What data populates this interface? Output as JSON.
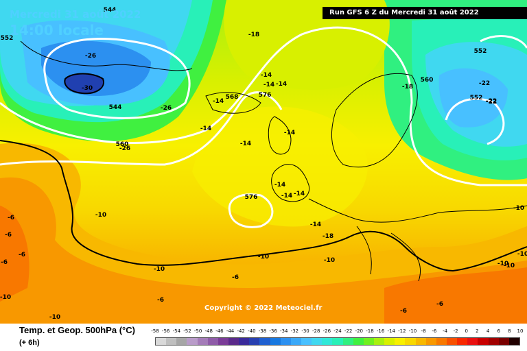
{
  "header": {
    "date": "Mercredi 31 août 2022",
    "time": "14:00 locale",
    "run": "Run GFS 6 Z du Mercredi 31 août 2022"
  },
  "copyright": "Copyright © 2022 Meteociel.fr",
  "legend": {
    "title": "Temp. et Geop. 500hPa (°C)",
    "subtitle": "(+ 6h)",
    "ticks": [
      "-58",
      "-56",
      "-54",
      "-52",
      "-50",
      "-48",
      "-46",
      "-44",
      "-42",
      "-40",
      "-38",
      "-36",
      "-34",
      "-32",
      "-30",
      "-28",
      "-26",
      "-24",
      "-22",
      "-20",
      "-18",
      "-16",
      "-14",
      "-12",
      "-10",
      "-8",
      "-6",
      "-4",
      "-2",
      "0",
      "2",
      "4",
      "6",
      "8",
      "10"
    ],
    "colors": [
      "#d9d9d9",
      "#bfbfbf",
      "#a6a6a6",
      "#b99cc9",
      "#a47cb8",
      "#8f5ca8",
      "#7a3c97",
      "#5a2a8a",
      "#3a2a9a",
      "#2840b0",
      "#2060d0",
      "#1878e0",
      "#2c90f0",
      "#3aa8f8",
      "#48c0ff",
      "#40d8f0",
      "#30e8d8",
      "#28f0b8",
      "#30f080",
      "#40f040",
      "#70f020",
      "#a8f010",
      "#d8f000",
      "#f8f000",
      "#f8d800",
      "#f8b800",
      "#f89800",
      "#f87800",
      "#f85000",
      "#f82800",
      "#e81010",
      "#c80000",
      "#a00000",
      "#780000",
      "#200000"
    ]
  },
  "map_labels": {
    "temperature": [
      {
        "text": "-26",
        "col": "#000"
      },
      {
        "text": "-30",
        "col": "#000"
      },
      {
        "text": "-26",
        "col": "#000"
      },
      {
        "text": "-18",
        "col": "#000"
      },
      {
        "text": "-14",
        "col": "#000"
      },
      {
        "text": "-14",
        "col": "#000"
      },
      {
        "text": "-14",
        "col": "#000"
      },
      {
        "text": "-14",
        "col": "#000"
      },
      {
        "text": "-14",
        "col": "#000"
      },
      {
        "text": "-14",
        "col": "#000"
      },
      {
        "text": "-14",
        "col": "#000"
      },
      {
        "text": "-14",
        "col": "#000"
      },
      {
        "text": "-14",
        "col": "#000"
      },
      {
        "text": "-14",
        "col": "#000"
      },
      {
        "text": "-14",
        "col": "#000"
      },
      {
        "text": "-18",
        "col": "#000"
      },
      {
        "text": "-18",
        "col": "#000"
      },
      {
        "text": "-26",
        "col": "#000"
      },
      {
        "text": "-22",
        "col": "#000"
      },
      {
        "text": "-22",
        "col": "#000"
      },
      {
        "text": "-10",
        "col": "#000"
      },
      {
        "text": "-10",
        "col": "#000"
      },
      {
        "text": "-10",
        "col": "#000"
      },
      {
        "text": "-10",
        "col": "#000"
      },
      {
        "text": "-10",
        "col": "#000"
      },
      {
        "text": "-10",
        "col": "#000"
      },
      {
        "text": "-10",
        "col": "#000"
      },
      {
        "text": "-10",
        "col": "#000"
      },
      {
        "text": "-6",
        "col": "#000"
      },
      {
        "text": "-6",
        "col": "#000"
      },
      {
        "text": "-6",
        "col": "#000"
      },
      {
        "text": "-6",
        "col": "#000"
      },
      {
        "text": "-6",
        "col": "#000"
      },
      {
        "text": "-6",
        "col": "#000"
      },
      {
        "text": "-6",
        "col": "#000"
      },
      {
        "text": "-6",
        "col": "#000"
      },
      {
        "text": "-10",
        "col": "#000"
      },
      {
        "text": "-10",
        "col": "#000"
      },
      {
        "text": "-22",
        "col": "#000"
      }
    ],
    "geopotential": [
      {
        "text": "544"
      },
      {
        "text": "552"
      },
      {
        "text": "544"
      },
      {
        "text": "560"
      },
      {
        "text": "568"
      },
      {
        "text": "576"
      },
      {
        "text": "576"
      },
      {
        "text": "560"
      },
      {
        "text": "552"
      },
      {
        "text": "552"
      }
    ]
  }
}
